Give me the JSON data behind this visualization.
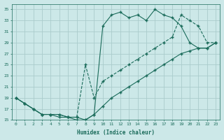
{
  "xlabel": "Humidex (Indice chaleur)",
  "bg_color": "#cce8e8",
  "grid_color": "#aacccc",
  "line_color": "#1a6b5a",
  "xlim": [
    -0.5,
    23.5
  ],
  "ylim": [
    15,
    36
  ],
  "yticks": [
    15,
    17,
    19,
    21,
    23,
    25,
    27,
    29,
    31,
    33,
    35
  ],
  "xticks": [
    0,
    1,
    2,
    3,
    4,
    5,
    6,
    7,
    8,
    9,
    10,
    11,
    12,
    13,
    14,
    15,
    16,
    17,
    18,
    19,
    20,
    21,
    22,
    23
  ],
  "line1_x": [
    0,
    1,
    2,
    3,
    4,
    5,
    6,
    7,
    8,
    9,
    10,
    11,
    12,
    13,
    14,
    15,
    16,
    17,
    18,
    19,
    20,
    21,
    22,
    23
  ],
  "line1_y": [
    19,
    18,
    17,
    16,
    16,
    16,
    15.5,
    15.5,
    15,
    16,
    32,
    34,
    34.5,
    33.5,
    34,
    33,
    35,
    34,
    33.5,
    32,
    29,
    28,
    28,
    29
  ],
  "line2_x": [
    0,
    1,
    2,
    3,
    4,
    5,
    6,
    7,
    8,
    9,
    10,
    11,
    12,
    13,
    14,
    15,
    16,
    17,
    18,
    19,
    20,
    21,
    22,
    23
  ],
  "line2_y": [
    19,
    18,
    17,
    16,
    16,
    16,
    15.5,
    15.5,
    25,
    19,
    22,
    23,
    24,
    25,
    26,
    27,
    28,
    29,
    30,
    34,
    33,
    32,
    29,
    29
  ],
  "line3_x": [
    0,
    1,
    2,
    3,
    4,
    5,
    6,
    7,
    8,
    9,
    10,
    11,
    12,
    13,
    14,
    15,
    16,
    17,
    18,
    19,
    20,
    21,
    22,
    23
  ],
  "line3_y": [
    19,
    18,
    17,
    16,
    16,
    15.5,
    15.5,
    15,
    15,
    16,
    17.5,
    19,
    20,
    21,
    22,
    23,
    24,
    25,
    26,
    27,
    27.5,
    28,
    28,
    29
  ]
}
